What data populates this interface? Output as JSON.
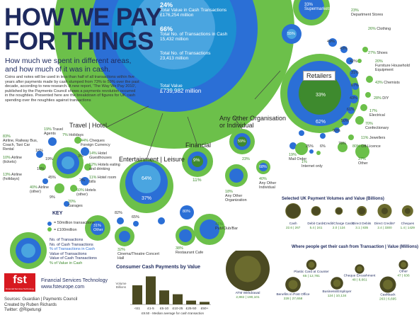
{
  "header": {
    "title_line1": "HOW WE PAY",
    "title_line2": "FOR THINGS",
    "subtitle_line1": "How much we spent in different areas,",
    "subtitle_line2": "and how much of it was in cash.",
    "intro": "Coins and notes will be used in less than half of all transactions within five years after payments made by cash slumped from 73% to 59% over the past decade, according to new research. A new report, 'The Way We Pay 2010', published by the Payments Council shows a payments revolution occurred in the noughties. Presented here are the breakdown of figures for UK cash spending over the noughties against transactions"
  },
  "totals": {
    "cash_value_pct": "24%",
    "cash_value_label": "Total Value in Cash Transactions",
    "cash_value_amount": "£176,254 million",
    "cash_count_pct": "66%",
    "cash_count_label": "Total No. of Transactions in Cash",
    "cash_count_amount": "15,432 million",
    "total_count_label": "Total No. of Transactions",
    "total_count_amount": "23,413 million",
    "total_value_label": "Total Value",
    "total_value_amount": "£739,982 million"
  },
  "sections": {
    "travel": "Travel | Hotel",
    "entertainment": "Entertainment | Leisure",
    "financial": "Financial",
    "other_org_line1": "Any Other Organisation",
    "other_org_line2": "or Individual",
    "retailers": "Retailers"
  },
  "travel_items": [
    {
      "pct": "83%",
      "label": "Airline, Railway Bus, Coach, Taxi Car Rental"
    },
    {
      "pct": "19%",
      "label": "Travel Agents"
    },
    {
      "pct": "7%",
      "label": "Holidays"
    },
    {
      "pct": "44%",
      "label": "Cheques Foreign Currency"
    },
    {
      "pct": "14%",
      "label": "Hotel Guesthouses"
    },
    {
      "pct": "52%",
      "label": "Hotels eating and drinking"
    },
    {
      "pct": "11%",
      "label": "Hotel room bills"
    },
    {
      "pct": "60%",
      "label": "Hotels (other)"
    },
    {
      "pct": "20%",
      "label": "Garages"
    },
    {
      "pct": "10%",
      "label": "Airline (tickets)"
    },
    {
      "pct": "13%",
      "label": "Airline (holidays)"
    },
    {
      "pct": "40%",
      "label": "Airline (other)"
    },
    {
      "pct": "15%",
      "label": ""
    },
    {
      "pct": "19%",
      "label": ""
    },
    {
      "pct": "10%",
      "label": ""
    },
    {
      "pct": "45%",
      "label": ""
    },
    {
      "pct": "9%",
      "label": ""
    },
    {
      "pct": "3%",
      "label": ""
    },
    {
      "pct": "2%",
      "label": ""
    }
  ],
  "entertainment_items": [
    {
      "pct": "64%",
      "label": ""
    },
    {
      "pct": "37%",
      "label": ""
    },
    {
      "pct": "31%",
      "label": "Other"
    },
    {
      "pct": "82%",
      "label": ""
    },
    {
      "pct": "65%",
      "label": ""
    },
    {
      "pct": "80%",
      "label": ""
    },
    {
      "pct": "32%",
      "label": "Cinema/Theatre Concert Hall"
    },
    {
      "pct": "38%",
      "label": "Restaurant Cafe"
    },
    {
      "pct": "41%",
      "label": "Pub/Club/Bar"
    }
  ],
  "financial_items": [
    {
      "pct": "9%",
      "label": ""
    },
    {
      "pct": "11%",
      "label": ""
    }
  ],
  "other_org_items": [
    {
      "pct": "59%",
      "label": ""
    },
    {
      "pct": "23%",
      "label": ""
    },
    {
      "pct": "68%",
      "label": ""
    },
    {
      "pct": "18%",
      "label": "Any Other Organization"
    },
    {
      "pct": "40%",
      "label": "Any Other Individual"
    }
  ],
  "retail_items": [
    {
      "pct": "33%",
      "label": "Supermarkets"
    },
    {
      "pct": "23%",
      "label": "Department Stores"
    },
    {
      "pct": "26%",
      "label": "Clothing"
    },
    {
      "pct": "55%",
      "label": ""
    },
    {
      "pct": "49%",
      "label": ""
    },
    {
      "pct": "43%",
      "label": ""
    },
    {
      "pct": "27%",
      "label": "Shoes"
    },
    {
      "pct": "20%",
      "label": "Furniture Household Equipment"
    },
    {
      "pct": "43%",
      "label": "Chemists"
    },
    {
      "pct": "28%",
      "label": "DIY"
    },
    {
      "pct": "17%",
      "label": "Electrical"
    },
    {
      "pct": "70%",
      "label": "Confectionary"
    },
    {
      "pct": "11%",
      "label": "Jewellers"
    },
    {
      "pct": "80%",
      "label": "Off-Licence"
    },
    {
      "pct": "37%",
      "label": "Other"
    },
    {
      "pct": "19%",
      "label": "Mail Order"
    },
    {
      "pct": "1%",
      "label": "Internet only"
    },
    {
      "pct": "33%",
      "label": ""
    },
    {
      "pct": "62%",
      "label": ""
    },
    {
      "pct": "42%",
      "label": ""
    },
    {
      "pct": "31%",
      "label": ""
    },
    {
      "pct": "67%",
      "label": ""
    },
    {
      "pct": "43%",
      "label": ""
    },
    {
      "pct": "61%",
      "label": ""
    },
    {
      "pct": "50%",
      "label": ""
    },
    {
      "pct": "90%",
      "label": ""
    },
    {
      "pct": "25%",
      "label": ""
    },
    {
      "pct": "6%",
      "label": ""
    },
    {
      "pct": "76%",
      "label": ""
    }
  ],
  "key": {
    "title": "KEY",
    "unit_count": "= 50million transactions",
    "unit_value": "= £100million",
    "lines": [
      "No. of Transactions",
      "No. of Cash Transactions",
      "% of Transactions in Cash",
      "Value of Transactions",
      "Value of Cash Transactions",
      "% of Value in Cash"
    ]
  },
  "brand": {
    "logo": "fst",
    "logo_sub": "Financial Services Technology",
    "name": "Financial Services Technology",
    "url": "www.fsteurope.com"
  },
  "credits": {
    "sources": "Sources: Guardian | Payments Council",
    "created": "Created by Ruben Richards",
    "twitter": "Twitter: @Ripetungi"
  },
  "chart_data": [
    {
      "type": "bar",
      "title": "Consumer Cash Payments by Value",
      "ylabel": "Volume Billions",
      "categories": [
        "<£1",
        "£1-5",
        "£5-10",
        "£10-25",
        "£25-50",
        "£50+"
      ],
      "values": [
        4.5,
        6.6,
        3.3,
        2.4,
        0.9,
        0.6
      ],
      "ylim": [
        0,
        7
      ],
      "footnote": "£9.50 - Median average for cash transaction"
    },
    {
      "type": "bubble",
      "title": "Selected UK Payment Volumes and Value (Billions)",
      "categories": [
        "Cash",
        "Debit Cards",
        "Credit/Charge Cards",
        "Direct Debits",
        "Direct Credits*",
        "Cheques"
      ],
      "labels": [
        "22.6 | 267",
        "5.4 | 241",
        "2.0 | 124",
        "3.1 | 835",
        "2.4 | 3300",
        "1.4 | 1429"
      ],
      "volumes": [
        22.6,
        5.4,
        2.0,
        3.1,
        2.4,
        1.4
      ],
      "values": [
        267,
        241,
        124,
        835,
        3300,
        1429
      ]
    },
    {
      "type": "bubble",
      "title": "Where people get their cash from Transaction | Value (Millions)",
      "categories": [
        "ATM Withdrawal",
        "Benefits in Post Office",
        "Plastic Card at Counter",
        "Business/Employer",
        "Cheque Encashment",
        "Cashback",
        "Other"
      ],
      "labels": [
        "2,882 | 190,101",
        "228 | 27,658",
        "65 | 12,781",
        "124 | 10,134",
        "48 | 8,661",
        "263 | 6,695",
        "47 | 636"
      ],
      "transactions": [
        2882,
        228,
        65,
        124,
        48,
        263,
        47
      ],
      "values": [
        190101,
        27658,
        12781,
        10134,
        8661,
        6695,
        636
      ]
    }
  ],
  "colors": {
    "navy": "#1e2a5e",
    "blue": "#2b6fd6",
    "lightblue": "#5aa0e8",
    "green": "#6cc04a",
    "darkgreen": "#3e8a2e",
    "olive": "#6b6b2e",
    "darkolive": "#4b4a22",
    "fst_red": "#d71920"
  }
}
